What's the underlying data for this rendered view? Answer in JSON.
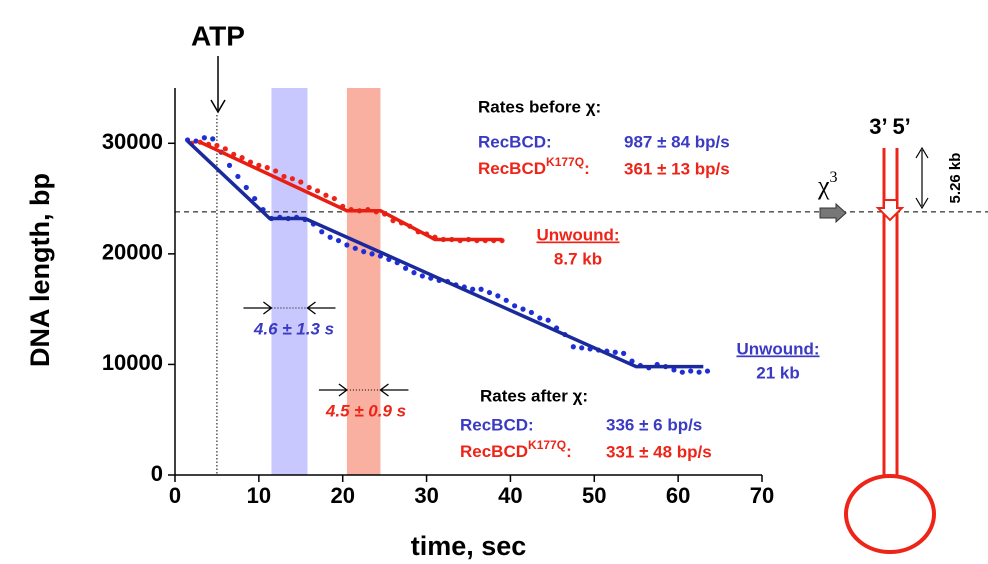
{
  "chart_data": {
    "type": "scatter",
    "xlabel": "time, sec",
    "ylabel": "DNA length, bp",
    "xlim": [
      0,
      70
    ],
    "xticks": [
      0,
      10,
      20,
      30,
      40,
      50,
      60,
      70
    ],
    "ylim": [
      0,
      35000
    ],
    "yticks": [
      0,
      10000,
      20000,
      30000
    ],
    "series": [
      {
        "color": "#1f2fd8",
        "x": [
          1.5,
          2.5,
          3.5,
          4.5,
          5.5,
          6.5,
          7.5,
          8.5,
          9.5,
          10.5,
          11.5,
          12.5,
          13.5,
          14.5,
          15.5,
          16.5,
          17.5,
          18.5,
          19.5,
          20.5,
          21.5,
          22.5,
          23.5,
          24.5,
          25.5,
          26.5,
          27.5,
          28.5,
          29.5,
          30.5,
          31.5,
          32.5,
          33.5,
          34.5,
          35.5,
          36.5,
          37.5,
          38.5,
          39.5,
          40.5,
          41.5,
          42.5,
          43.5,
          44.5,
          45.5,
          46.5,
          47.5,
          48.5,
          49.5,
          50.5,
          51.5,
          52.5,
          53.5,
          54.5,
          55.5,
          56.5,
          57.5,
          58.5,
          59.5,
          60.5,
          61.5,
          62.5,
          63.5
        ],
        "values": [
          30300,
          30200,
          30500,
          30400,
          29200,
          28000,
          27000,
          26000,
          25000,
          24000,
          23200,
          23300,
          23200,
          23300,
          23100,
          22700,
          22000,
          21500,
          21200,
          20800,
          20500,
          20200,
          20000,
          19800,
          19500,
          19200,
          18700,
          18300,
          18000,
          17800,
          17600,
          17500,
          17200,
          17000,
          16800,
          16800,
          16500,
          16200,
          15800,
          15300,
          15000,
          14700,
          14200,
          14000,
          13300,
          12700,
          11600,
          11500,
          11400,
          11300,
          11200,
          11100,
          11000,
          10300,
          9900,
          9700,
          10000,
          9800,
          9500,
          9300,
          9400,
          9300,
          9400
        ]
      },
      {
        "color": "#ee2418",
        "x": [
          2,
          3,
          4,
          5,
          6,
          7,
          8,
          9,
          10,
          11,
          12,
          13,
          14,
          15,
          16,
          17,
          18,
          19,
          20,
          21,
          22,
          23,
          24,
          25,
          26,
          27,
          28,
          29,
          30,
          31,
          32,
          33,
          34,
          35,
          36,
          37,
          38,
          39
        ],
        "values": [
          30000,
          30100,
          29900,
          29800,
          29500,
          29000,
          28700,
          28300,
          28000,
          27800,
          27500,
          27000,
          26800,
          26500,
          26000,
          25700,
          25300,
          25000,
          24300,
          24000,
          23900,
          24000,
          23800,
          23600,
          23000,
          22800,
          22500,
          22000,
          21800,
          21500,
          21300,
          21300,
          21200,
          21300,
          21200,
          21200,
          21200,
          21200
        ]
      }
    ],
    "fits": [
      {
        "color": "#1a2a9c",
        "x": [
          1.5,
          11.3,
          15.5,
          55,
          63
        ],
        "values": [
          30200,
          23200,
          23200,
          9800,
          9800
        ]
      },
      {
        "color": "#e81e12",
        "x": [
          3,
          20.5,
          24.5,
          31,
          39
        ],
        "values": [
          30100,
          23900,
          23900,
          21300,
          21300
        ]
      }
    ],
    "bands": [
      {
        "color": "#c8c8ff",
        "x": [
          11.5,
          15.8
        ]
      },
      {
        "color": "#f9b0a0",
        "x": [
          20.5,
          24.5
        ]
      }
    ],
    "atp_time": 5,
    "chi_level": 23800,
    "annotations": {
      "atp": "ATP",
      "before_title": "Rates before χ:",
      "before_wt": "RecBCD:",
      "before_wt_rate": "987 ± 84 bp/s",
      "before_mut": "RecBCD",
      "before_mut_sup": "K177Q",
      "before_mut_colon": ":",
      "before_mut_rate": "361 ± 13 bp/s",
      "after_title": "Rates after χ:",
      "after_wt": "RecBCD:",
      "after_wt_rate": "336 ± 6 bp/s",
      "after_mut": "RecBCD",
      "after_mut_sup": "K177Q",
      "after_mut_colon": ":",
      "after_mut_rate": "331 ± 48 bp/s",
      "unwound_red": "Unwound:",
      "unwound_red_val": "8.7 kb",
      "unwound_blue": "Unwound:",
      "unwound_blue_val": "21 kb",
      "pause_blue": "4.6 ± 1.3 s",
      "pause_red": "4.5 ± 0.9 s",
      "strands": "3’ 5’",
      "chi": "χ",
      "chi_sup": "3",
      "length": "5.26 kb"
    }
  }
}
